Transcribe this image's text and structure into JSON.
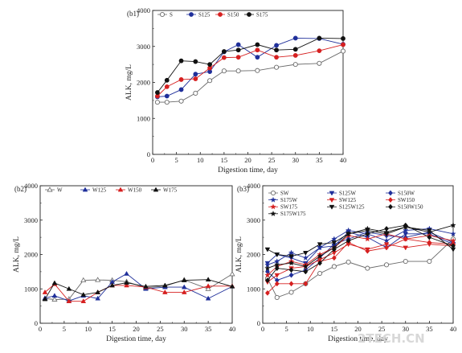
{
  "watermark": "2TECH.CN",
  "colors": {
    "black": "#111111",
    "blue": "#1f2f9a",
    "red": "#d62020",
    "gray": "#6a6a6a"
  },
  "chart_data": [
    {
      "type": "line",
      "panel_label": "(b1)",
      "xlabel": "Digestion time, day",
      "ylabel": "ALK, mg/L",
      "xlim": [
        0,
        40
      ],
      "ylim": [
        0,
        4000
      ],
      "xticks": [
        0,
        5,
        10,
        15,
        20,
        25,
        30,
        35,
        40
      ],
      "yticks": [
        0,
        1000,
        2000,
        3000,
        4000
      ],
      "legend_position": "top-left",
      "series": [
        {
          "name": "S",
          "marker": "circle-open",
          "color": "gray",
          "x": [
            1,
            3,
            6,
            9,
            12,
            15,
            18,
            22,
            26,
            30,
            35,
            40
          ],
          "y": [
            1450,
            1450,
            1480,
            1700,
            2050,
            2320,
            2320,
            2330,
            2420,
            2500,
            2530,
            2870
          ]
        },
        {
          "name": "S125",
          "marker": "circle",
          "color": "blue",
          "x": [
            1,
            3,
            6,
            9,
            12,
            15,
            18,
            22,
            26,
            30,
            35,
            40
          ],
          "y": [
            1600,
            1620,
            1800,
            2230,
            2300,
            2850,
            3050,
            2700,
            3030,
            3230,
            3220,
            3060
          ]
        },
        {
          "name": "S150",
          "marker": "circle",
          "color": "red",
          "x": [
            1,
            3,
            6,
            9,
            12,
            15,
            18,
            22,
            26,
            30,
            35,
            40
          ],
          "y": [
            1620,
            1880,
            2080,
            2100,
            2400,
            2690,
            2700,
            2900,
            2700,
            2750,
            2880,
            3050
          ]
        },
        {
          "name": "S175",
          "marker": "circle",
          "color": "black",
          "x": [
            1,
            3,
            6,
            9,
            12,
            15,
            18,
            22,
            26,
            30,
            35,
            40
          ],
          "y": [
            1720,
            2060,
            2600,
            2580,
            2500,
            2860,
            2900,
            3050,
            2900,
            2920,
            3230,
            3220
          ]
        }
      ]
    },
    {
      "type": "line",
      "panel_label": "(b2)",
      "xlabel": "Digestion time, day",
      "ylabel": "ALK, mg/L",
      "xlim": [
        0,
        40
      ],
      "ylim": [
        0,
        4000
      ],
      "xticks": [
        0,
        5,
        10,
        15,
        20,
        25,
        30,
        35,
        40
      ],
      "yticks": [
        0,
        1000,
        2000,
        3000,
        4000
      ],
      "legend_position": "top",
      "series": [
        {
          "name": "W",
          "marker": "triangle-open",
          "color": "gray",
          "x": [
            1,
            3,
            6,
            9,
            12,
            15,
            18,
            22,
            26,
            30,
            35,
            40
          ],
          "y": [
            720,
            690,
            700,
            1250,
            1260,
            1250,
            1210,
            1030,
            1080,
            1260,
            1000,
            1430
          ]
        },
        {
          "name": "W125",
          "marker": "triangle",
          "color": "blue",
          "x": [
            1,
            3,
            6,
            9,
            12,
            15,
            18,
            22,
            26,
            30,
            35,
            40
          ],
          "y": [
            730,
            800,
            650,
            800,
            720,
            1200,
            1440,
            1000,
            1050,
            1050,
            720,
            1070
          ]
        },
        {
          "name": "W150",
          "marker": "triangle",
          "color": "red",
          "x": [
            1,
            3,
            6,
            9,
            12,
            15,
            18,
            22,
            26,
            30,
            35,
            40
          ],
          "y": [
            900,
            1140,
            640,
            640,
            900,
            1100,
            1100,
            1050,
            900,
            900,
            1080,
            1080
          ]
        },
        {
          "name": "W175",
          "marker": "triangle",
          "color": "black",
          "x": [
            1,
            3,
            6,
            9,
            12,
            15,
            18,
            22,
            26,
            30,
            35,
            40
          ],
          "y": [
            700,
            1170,
            1000,
            830,
            900,
            1100,
            1180,
            1070,
            1100,
            1250,
            1270,
            1070
          ]
        }
      ]
    },
    {
      "type": "line",
      "panel_label": "(b3)",
      "xlabel": "Digestion time, day",
      "ylabel": "ALK, mg/L",
      "xlim": [
        0,
        40
      ],
      "ylim": [
        0,
        4000
      ],
      "xticks": [
        0,
        5,
        10,
        15,
        20,
        25,
        30,
        35,
        40
      ],
      "yticks": [
        0,
        1000,
        2000,
        3000,
        4000
      ],
      "legend_position": "top",
      "series": [
        {
          "name": "SW",
          "marker": "circle-open",
          "color": "gray",
          "x": [
            1,
            3,
            6,
            9,
            12,
            15,
            18,
            22,
            26,
            30,
            35,
            40
          ],
          "y": [
            1300,
            750,
            900,
            1150,
            1450,
            1650,
            1780,
            1600,
            1700,
            1800,
            1800,
            2450
          ]
        },
        {
          "name": "S125W",
          "marker": "triangle-down",
          "color": "blue",
          "x": [
            1,
            3,
            6,
            9,
            12,
            15,
            18,
            22,
            26,
            30,
            35,
            40
          ],
          "y": [
            1750,
            2000,
            1900,
            1750,
            2200,
            2250,
            2650,
            2500,
            2200,
            2600,
            2600,
            2300
          ]
        },
        {
          "name": "S150W",
          "marker": "diamond",
          "color": "blue",
          "x": [
            1,
            3,
            6,
            9,
            12,
            15,
            18,
            22,
            26,
            30,
            35,
            40
          ],
          "y": [
            1500,
            1250,
            1400,
            1550,
            1900,
            2300,
            2450,
            2650,
            2550,
            2500,
            2650,
            2350
          ]
        },
        {
          "name": "S175W",
          "marker": "star",
          "color": "blue",
          "x": [
            1,
            3,
            6,
            9,
            12,
            15,
            18,
            22,
            26,
            30,
            35,
            40
          ],
          "y": [
            1700,
            1800,
            2050,
            1900,
            2200,
            2450,
            2700,
            2600,
            2400,
            2700,
            2750,
            2600
          ]
        },
        {
          "name": "SW125",
          "marker": "triangle-down",
          "color": "red",
          "x": [
            1,
            3,
            6,
            9,
            12,
            15,
            18,
            22,
            26,
            30,
            35,
            40
          ],
          "y": [
            1200,
            1400,
            1600,
            1650,
            1850,
            2050,
            2300,
            2150,
            2300,
            2200,
            2300,
            2250
          ]
        },
        {
          "name": "SW150",
          "marker": "diamond",
          "color": "red",
          "x": [
            1,
            3,
            6,
            9,
            12,
            15,
            18,
            22,
            26,
            30,
            35,
            40
          ],
          "y": [
            880,
            1150,
            1150,
            1150,
            1800,
            1900,
            2350,
            2100,
            2200,
            2450,
            2350,
            2300
          ]
        },
        {
          "name": "SW175",
          "marker": "star",
          "color": "red",
          "x": [
            1,
            3,
            6,
            9,
            12,
            15,
            18,
            22,
            26,
            30,
            35,
            40
          ],
          "y": [
            1400,
            1650,
            1800,
            1700,
            2000,
            2200,
            2550,
            2450,
            2600,
            2450,
            2550,
            2400
          ]
        },
        {
          "name": "S125W125",
          "marker": "triangle-down",
          "color": "black",
          "x": [
            1,
            3,
            6,
            9,
            12,
            15,
            18,
            22,
            26,
            30,
            35,
            40
          ],
          "y": [
            2150,
            2000,
            1950,
            2050,
            2300,
            2350,
            2600,
            2700,
            2600,
            2800,
            2700,
            2150
          ]
        },
        {
          "name": "S150W150",
          "marker": "diamond",
          "color": "black",
          "x": [
            1,
            3,
            6,
            9,
            12,
            15,
            18,
            22,
            26,
            30,
            35,
            40
          ],
          "y": [
            1250,
            1600,
            1550,
            1500,
            1750,
            2150,
            2400,
            2600,
            2750,
            2850,
            2500,
            2250
          ]
        },
        {
          "name": "S175W175",
          "marker": "star",
          "color": "black",
          "x": [
            1,
            3,
            6,
            9,
            12,
            15,
            18,
            22,
            26,
            30,
            35,
            40
          ],
          "y": [
            1600,
            1700,
            1750,
            1650,
            1950,
            2200,
            2600,
            2750,
            2650,
            2800,
            2650,
            2850
          ]
        }
      ]
    }
  ]
}
